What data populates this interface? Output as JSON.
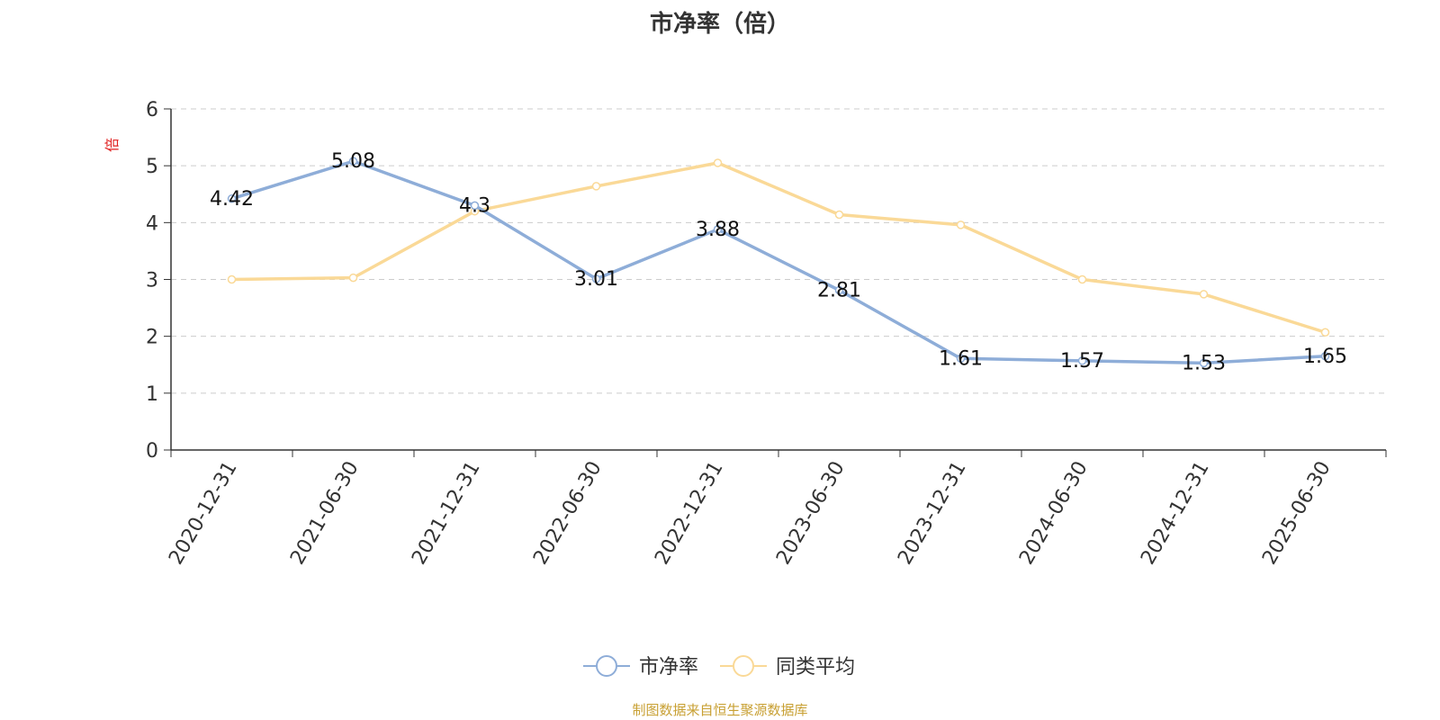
{
  "title": "市净率（倍）",
  "source_note": "制图数据来自恒生聚源数据库",
  "colors": {
    "series1": "#8eadd8",
    "series2": "#fad997",
    "unit_label": "#e02020",
    "source": "#c8a033"
  },
  "chart_data": {
    "type": "line",
    "title": "市净率（倍）",
    "ylabel": "倍",
    "xlabel": "",
    "ylim": [
      0,
      6
    ],
    "yticks": [
      "0",
      "1",
      "2",
      "3",
      "4",
      "5",
      "6"
    ],
    "grid": true,
    "legend_position": "bottom-center",
    "categories": [
      "2020-12-31",
      "2021-06-30",
      "2021-12-31",
      "2022-06-30",
      "2022-12-31",
      "2023-06-30",
      "2023-12-31",
      "2024-06-30",
      "2024-12-31",
      "2025-06-30"
    ],
    "series": [
      {
        "name": "市净率",
        "values": [
          4.42,
          5.08,
          4.3,
          3.01,
          3.88,
          2.81,
          1.61,
          1.57,
          1.53,
          1.65
        ],
        "labels": [
          "4.42",
          "5.08",
          "4.3",
          "3.01",
          "3.88",
          "2.81",
          "1.61",
          "1.57",
          "1.53",
          "1.65"
        ],
        "color": "#8eadd8"
      },
      {
        "name": "同类平均",
        "values": [
          3.0,
          3.03,
          4.2,
          4.64,
          5.05,
          4.14,
          3.96,
          3.0,
          2.74,
          2.07
        ],
        "color": "#fad997"
      }
    ]
  }
}
